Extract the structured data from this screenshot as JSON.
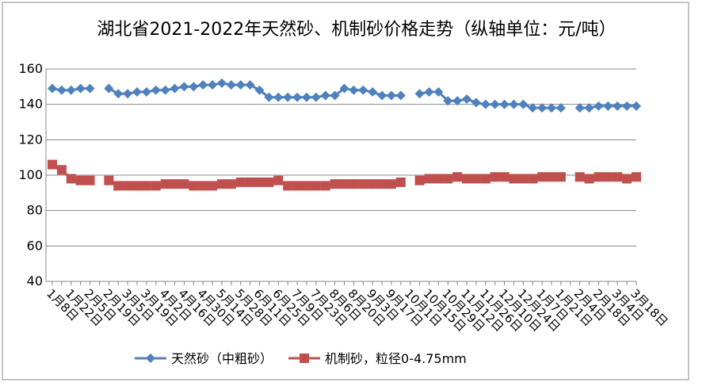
{
  "chart_data": {
    "type": "line",
    "title": "湖北省2021-2022年天然砂、机制砂价格走势（纵轴单位：元/吨）",
    "categories": [
      "1月8日",
      null,
      "1月22日",
      null,
      "2月5日",
      null,
      "2月19日",
      null,
      "3月5日",
      null,
      "3月19日",
      null,
      "4月2日",
      null,
      "4月16日",
      null,
      "4月30日",
      null,
      "5月14日",
      null,
      "5月28日",
      null,
      "6月11日",
      null,
      "6月25日",
      null,
      "7月9日",
      null,
      "7月23日",
      null,
      "8月6日",
      null,
      "8月20日",
      null,
      "9月3日",
      null,
      "9月17日",
      null,
      "10月1日",
      null,
      "10月15日",
      null,
      "10月29日",
      null,
      "11月12日",
      null,
      "11月26日",
      null,
      "12月10日",
      null,
      "12月24日",
      null,
      "1月7日",
      null,
      "1月21日",
      null,
      "2月4日",
      null,
      "2月18日",
      null,
      "3月4日",
      null,
      "3月18日"
    ],
    "series": [
      {
        "name": "天然砂（中粗砂）",
        "color": "#4f81bd",
        "marker": "diamond",
        "values": [
          149,
          148,
          148,
          149,
          149,
          null,
          149,
          146,
          146,
          147,
          147,
          148,
          148,
          149,
          150,
          150,
          151,
          151,
          152,
          151,
          151,
          151,
          148,
          144,
          144,
          144,
          144,
          144,
          144,
          145,
          145,
          149,
          148,
          148,
          147,
          145,
          145,
          145,
          null,
          146,
          147,
          147,
          142,
          142,
          143,
          141,
          140,
          140,
          140,
          140,
          140,
          138,
          138,
          138,
          138,
          null,
          138,
          138,
          139,
          139,
          139,
          139,
          139
        ]
      },
      {
        "name": "机制砂，粒径0-4.75mm",
        "color": "#c0504d",
        "marker": "square",
        "values": [
          106,
          103,
          98,
          97,
          97,
          null,
          97,
          94,
          94,
          94,
          94,
          94,
          95,
          95,
          95,
          94,
          94,
          94,
          95,
          95,
          96,
          96,
          96,
          96,
          97,
          94,
          94,
          94,
          94,
          94,
          95,
          95,
          95,
          95,
          95,
          95,
          95,
          96,
          null,
          97,
          98,
          98,
          98,
          99,
          98,
          98,
          98,
          99,
          99,
          98,
          98,
          98,
          99,
          99,
          99,
          null,
          99,
          98,
          99,
          99,
          99,
          98,
          99
        ]
      }
    ],
    "ylim": [
      40,
      160
    ],
    "yticks": [
      40,
      60,
      80,
      100,
      120,
      140,
      160
    ],
    "grid": true
  }
}
